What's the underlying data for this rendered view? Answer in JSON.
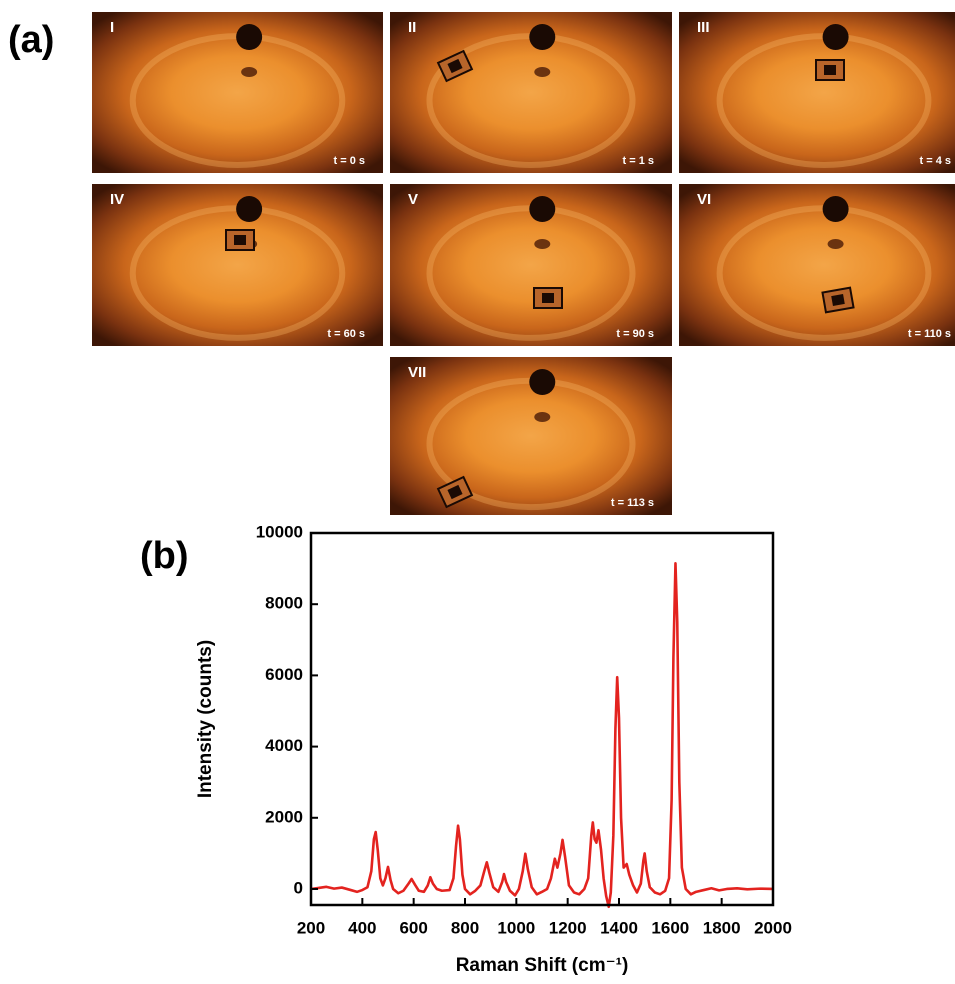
{
  "panel_a": {
    "label": "(a)",
    "frames": [
      {
        "label": "I",
        "time": "t = 0 s"
      },
      {
        "label": "II",
        "time": "t = 1 s"
      },
      {
        "label": "III",
        "time": "t = 4 s"
      },
      {
        "label": "IV",
        "time": "t = 60 s"
      },
      {
        "label": "V",
        "time": "t = 90 s"
      },
      {
        "label": "VI",
        "time": "t = 110 s"
      },
      {
        "label": "VII",
        "time": "t = 113 s"
      }
    ]
  },
  "chart_data": {
    "type": "line",
    "panel_label": "(b)",
    "x_label": "Raman Shift (cm⁻¹)",
    "y_label": "Intensity (counts)",
    "x": [
      200,
      230,
      260,
      290,
      320,
      350,
      380,
      400,
      420,
      435,
      445,
      452,
      460,
      470,
      480,
      490,
      500,
      510,
      520,
      540,
      560,
      580,
      592,
      605,
      620,
      640,
      655,
      665,
      675,
      690,
      710,
      740,
      755,
      765,
      773,
      780,
      790,
      800,
      820,
      840,
      860,
      875,
      885,
      895,
      910,
      930,
      945,
      952,
      960,
      975,
      995,
      1010,
      1025,
      1035,
      1045,
      1060,
      1080,
      1100,
      1120,
      1135,
      1150,
      1160,
      1172,
      1180,
      1190,
      1205,
      1225,
      1245,
      1265,
      1280,
      1292,
      1298,
      1305,
      1312,
      1320,
      1330,
      1340,
      1350,
      1360,
      1368,
      1378,
      1386,
      1393,
      1400,
      1408,
      1418,
      1430,
      1440,
      1455,
      1470,
      1485,
      1495,
      1500,
      1508,
      1520,
      1540,
      1560,
      1580,
      1595,
      1605,
      1612,
      1620,
      1627,
      1635,
      1645,
      1660,
      1680,
      1700,
      1730,
      1760,
      1790,
      1820,
      1860,
      1900,
      1950,
      2000
    ],
    "values": [
      0,
      30,
      60,
      10,
      40,
      -20,
      -80,
      -30,
      50,
      500,
      1400,
      1600,
      1100,
      300,
      100,
      300,
      620,
      250,
      0,
      -120,
      -50,
      150,
      280,
      120,
      -50,
      -80,
      100,
      330,
      150,
      0,
      -50,
      -30,
      300,
      1200,
      1780,
      1400,
      400,
      0,
      -150,
      -50,
      100,
      500,
      750,
      450,
      50,
      -80,
      200,
      420,
      200,
      -50,
      -180,
      0,
      500,
      990,
      550,
      50,
      -150,
      -80,
      0,
      300,
      850,
      600,
      1000,
      1380,
      900,
      100,
      -100,
      -150,
      0,
      300,
      1500,
      1870,
      1400,
      1300,
      1650,
      1100,
      300,
      -200,
      -500,
      -100,
      1500,
      4500,
      5950,
      4800,
      2000,
      600,
      700,
      400,
      100,
      -100,
      150,
      800,
      1000,
      500,
      50,
      -100,
      -150,
      -50,
      300,
      2500,
      6500,
      9150,
      7500,
      3000,
      600,
      0,
      -150,
      -80,
      -30,
      20,
      -40,
      0,
      20,
      -10,
      10,
      0
    ],
    "color": "#e3231f",
    "xlim": [
      200,
      2000
    ],
    "xticks": [
      200,
      400,
      600,
      800,
      1000,
      1200,
      1400,
      1600,
      1800,
      2000
    ],
    "ylim": [
      -450,
      10000
    ],
    "yticks": [
      0,
      2000,
      4000,
      6000,
      8000,
      10000
    ]
  }
}
